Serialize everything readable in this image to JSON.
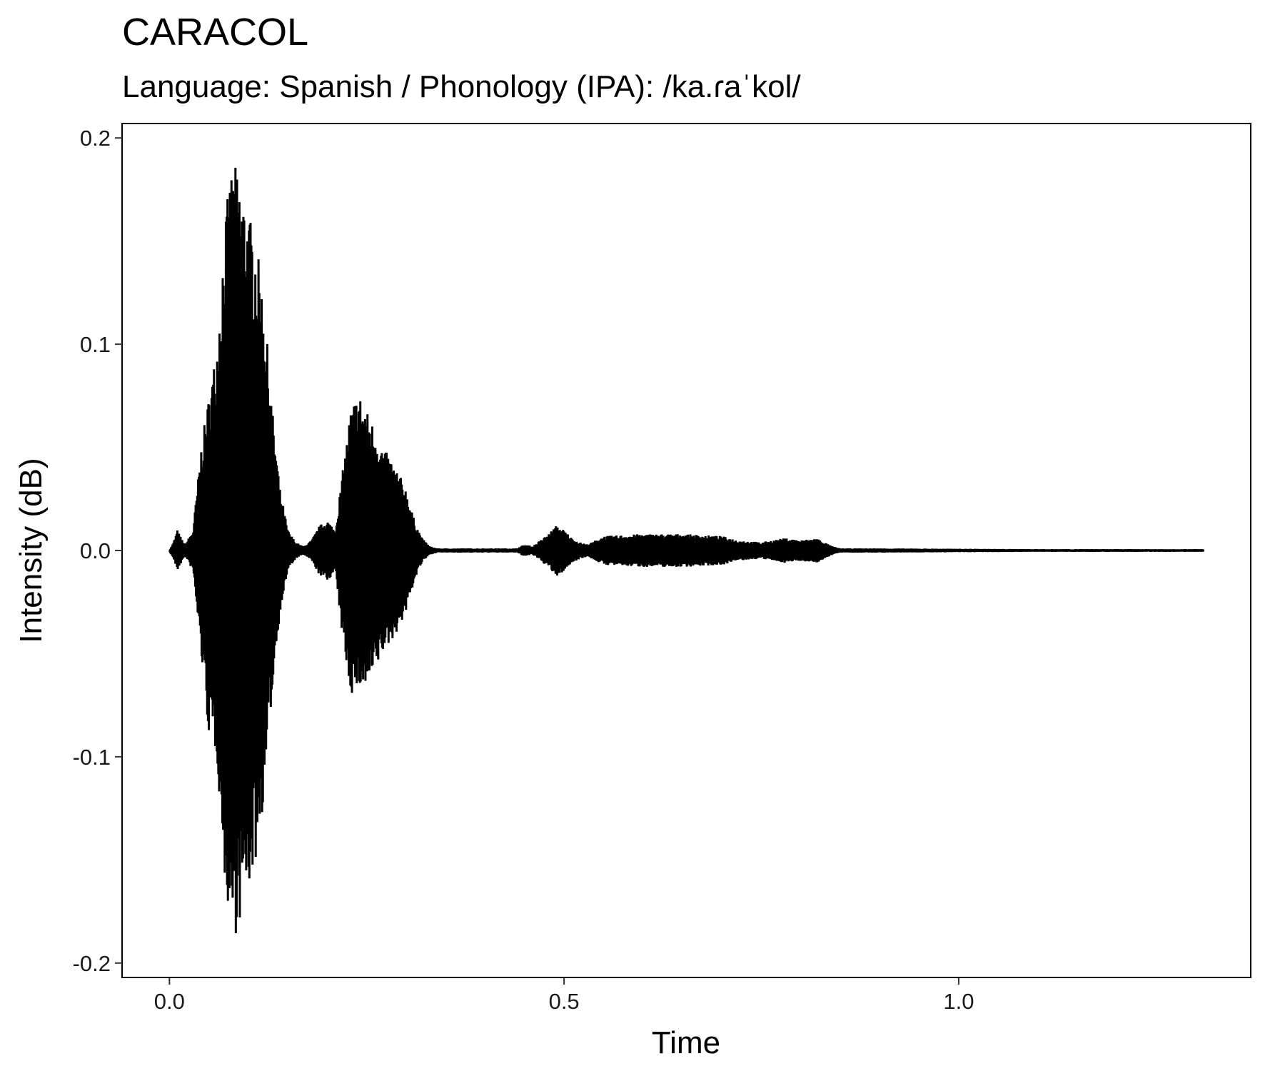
{
  "chart_data": {
    "type": "line",
    "title": "CARACOL",
    "subtitle": "Language: Spanish / Phonology (IPA): /ka.ɾaˈkol/",
    "xlabel": "Time",
    "ylabel": "Intensity (dB)",
    "xlim": [
      -0.06,
      1.37
    ],
    "ylim": [
      -0.207,
      0.207
    ],
    "xticks": [
      {
        "value": 0.0,
        "label": "0.0"
      },
      {
        "value": 0.5,
        "label": "0.5"
      },
      {
        "value": 1.0,
        "label": "1.0"
      }
    ],
    "yticks": [
      {
        "value": 0.2,
        "label": "0.2"
      },
      {
        "value": 0.1,
        "label": "0.1"
      },
      {
        "value": 0.0,
        "label": "0.0"
      },
      {
        "value": -0.1,
        "label": "-0.1"
      },
      {
        "value": -0.2,
        "label": "-0.2"
      }
    ],
    "grid": false,
    "line_color": "#000000",
    "duration": 1.31,
    "envelope": {
      "time": [
        0.0,
        0.005,
        0.01,
        0.015,
        0.02,
        0.03,
        0.04,
        0.05,
        0.06,
        0.07,
        0.08,
        0.09,
        0.1,
        0.11,
        0.12,
        0.13,
        0.14,
        0.15,
        0.16,
        0.17,
        0.18,
        0.19,
        0.2,
        0.21,
        0.22,
        0.23,
        0.24,
        0.25,
        0.26,
        0.27,
        0.28,
        0.29,
        0.3,
        0.31,
        0.32,
        0.33,
        0.34,
        0.35,
        0.4,
        0.44,
        0.45,
        0.46,
        0.47,
        0.48,
        0.49,
        0.5,
        0.51,
        0.52,
        0.53,
        0.55,
        0.6,
        0.65,
        0.7,
        0.72,
        0.75,
        0.78,
        0.8,
        0.82,
        0.83,
        0.84,
        0.85,
        0.9,
        1.0,
        1.1,
        1.2,
        1.31
      ],
      "max": [
        0.0,
        0.004,
        0.01,
        0.006,
        0.003,
        0.01,
        0.05,
        0.075,
        0.1,
        0.16,
        0.19,
        0.18,
        0.165,
        0.15,
        0.12,
        0.07,
        0.03,
        0.01,
        0.004,
        0.002,
        0.005,
        0.012,
        0.015,
        0.01,
        0.04,
        0.07,
        0.077,
        0.068,
        0.06,
        0.05,
        0.045,
        0.038,
        0.03,
        0.015,
        0.006,
        0.002,
        0.001,
        0.001,
        0.001,
        0.001,
        0.003,
        0.002,
        0.005,
        0.008,
        0.012,
        0.01,
        0.006,
        0.004,
        0.003,
        0.007,
        0.008,
        0.008,
        0.007,
        0.005,
        0.004,
        0.006,
        0.005,
        0.006,
        0.004,
        0.002,
        0.001,
        0.001,
        0.0008,
        0.0006,
        0.0006,
        0.0006
      ],
      "min": [
        0.0,
        -0.004,
        -0.01,
        -0.006,
        -0.003,
        -0.01,
        -0.05,
        -0.09,
        -0.1,
        -0.16,
        -0.19,
        -0.18,
        -0.165,
        -0.15,
        -0.12,
        -0.07,
        -0.03,
        -0.01,
        -0.004,
        -0.002,
        -0.005,
        -0.012,
        -0.015,
        -0.01,
        -0.045,
        -0.07,
        -0.067,
        -0.068,
        -0.06,
        -0.05,
        -0.045,
        -0.038,
        -0.03,
        -0.015,
        -0.006,
        -0.002,
        -0.001,
        -0.001,
        -0.001,
        -0.001,
        -0.003,
        -0.002,
        -0.005,
        -0.008,
        -0.013,
        -0.01,
        -0.006,
        -0.004,
        -0.003,
        -0.007,
        -0.008,
        -0.008,
        -0.007,
        -0.005,
        -0.004,
        -0.006,
        -0.005,
        -0.006,
        -0.004,
        -0.002,
        -0.001,
        -0.001,
        -0.0008,
        -0.0006,
        -0.0006,
        -0.0006
      ]
    }
  }
}
